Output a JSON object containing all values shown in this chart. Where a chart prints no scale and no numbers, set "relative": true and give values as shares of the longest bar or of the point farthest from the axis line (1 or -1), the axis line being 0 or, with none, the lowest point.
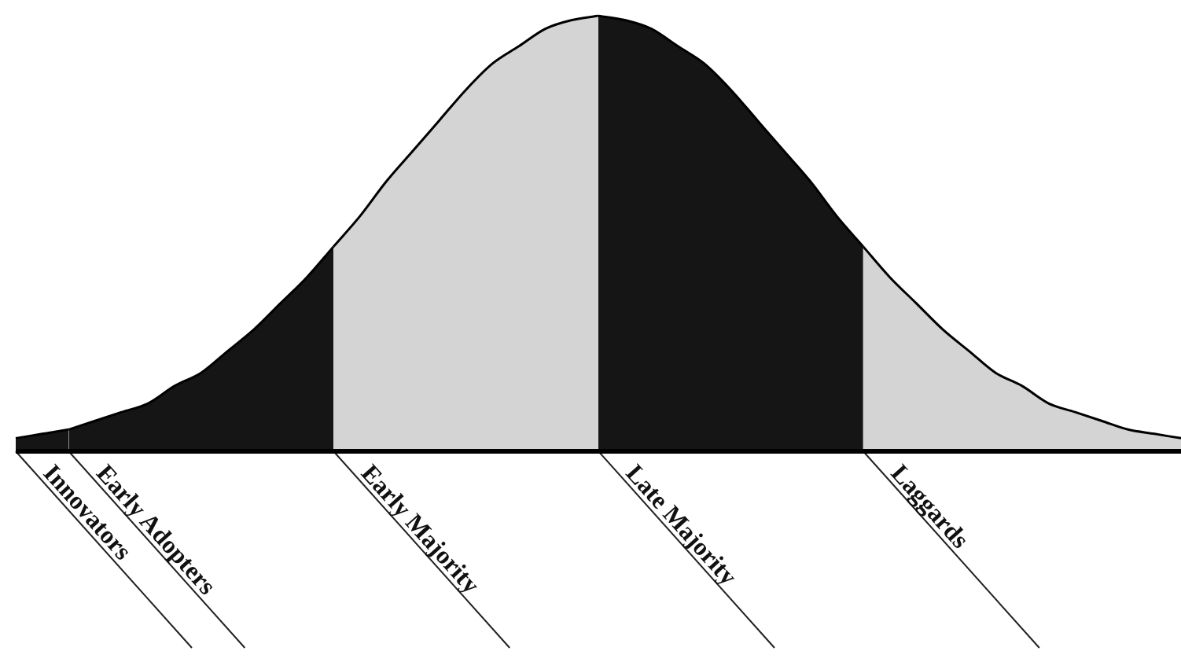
{
  "chart_data": {
    "type": "area",
    "relative": true,
    "legend": false,
    "grid": false,
    "marker": "none",
    "categories": [
      null,
      null,
      null,
      null,
      null,
      null,
      null,
      null,
      null,
      null,
      null,
      null,
      null,
      null,
      null,
      null,
      null,
      null,
      null,
      null,
      null,
      null,
      null,
      null,
      null,
      null,
      null,
      null,
      null,
      null,
      null,
      null,
      null,
      null,
      null,
      null,
      null,
      null,
      null,
      null,
      null,
      null,
      null,
      null,
      null
    ],
    "series": [
      {
        "name": "Innovators",
        "color": "#151515",
        "values": [
          0.03,
          0.04,
          0.05,
          null,
          null,
          null,
          null,
          null,
          null,
          null,
          null,
          null,
          null,
          null,
          null,
          null,
          null,
          null,
          null,
          null,
          null,
          null,
          null,
          null,
          null,
          null,
          null,
          null,
          null,
          null,
          null,
          null,
          null,
          null,
          null,
          null,
          null,
          null,
          null,
          null,
          null,
          null,
          null,
          null,
          null
        ]
      },
      {
        "name": "Early Adopters",
        "color": "#151515",
        "values": [
          null,
          null,
          0.05,
          0.07,
          0.09,
          0.11,
          0.15,
          0.18,
          0.23,
          0.28,
          0.34,
          0.4,
          0.47,
          null,
          null,
          null,
          null,
          null,
          null,
          null,
          null,
          null,
          null,
          null,
          null,
          null,
          null,
          null,
          null,
          null,
          null,
          null,
          null,
          null,
          null,
          null,
          null,
          null,
          null,
          null,
          null,
          null,
          null,
          null,
          null
        ]
      },
      {
        "name": "Early Majority",
        "color": "#d4d4d4",
        "values": [
          null,
          null,
          null,
          null,
          null,
          null,
          null,
          null,
          null,
          null,
          null,
          null,
          0.47,
          0.54,
          0.62,
          0.69,
          0.76,
          0.83,
          0.89,
          0.93,
          0.97,
          0.99,
          1,
          null,
          null,
          null,
          null,
          null,
          null,
          null,
          null,
          null,
          null,
          null,
          null,
          null,
          null,
          null,
          null,
          null,
          null,
          null,
          null,
          null,
          null
        ]
      },
      {
        "name": "Late Majority",
        "color": "#151515",
        "values": [
          null,
          null,
          null,
          null,
          null,
          null,
          null,
          null,
          null,
          null,
          null,
          null,
          null,
          null,
          null,
          null,
          null,
          null,
          null,
          null,
          null,
          null,
          1,
          0.99,
          0.97,
          0.93,
          0.89,
          0.83,
          0.76,
          0.69,
          0.62,
          0.54,
          0.47,
          null,
          null,
          null,
          null,
          null,
          null,
          null,
          null,
          null,
          null,
          null,
          null
        ]
      },
      {
        "name": "Laggards",
        "color": "#d4d4d4",
        "values": [
          null,
          null,
          null,
          null,
          null,
          null,
          null,
          null,
          null,
          null,
          null,
          null,
          null,
          null,
          null,
          null,
          null,
          null,
          null,
          null,
          null,
          null,
          null,
          null,
          null,
          null,
          null,
          null,
          null,
          null,
          null,
          null,
          0.47,
          0.4,
          0.34,
          0.28,
          0.23,
          0.18,
          0.15,
          0.11,
          0.09,
          0.07,
          0.05,
          0.04,
          0.03
        ]
      }
    ]
  }
}
